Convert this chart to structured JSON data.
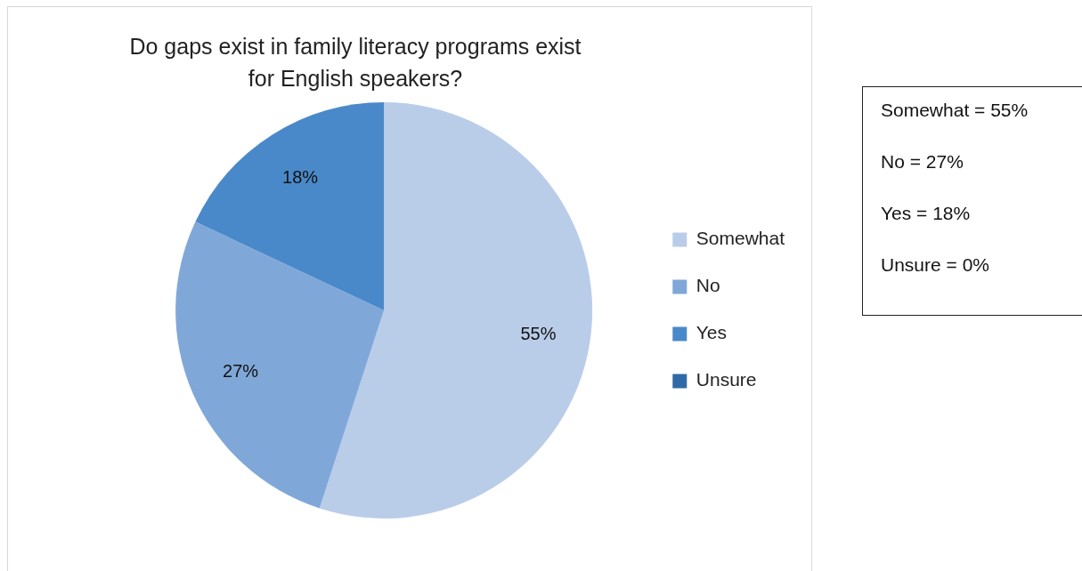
{
  "chart_data": {
    "type": "pie",
    "title": "Do gaps exist in family literacy programs exist for English speakers?",
    "categories": [
      "Somewhat",
      "No",
      "Yes",
      "Unsure"
    ],
    "values": [
      55,
      27,
      18,
      0
    ],
    "colors": [
      "#b9cde9",
      "#7fa8d9",
      "#4a89c9",
      "#2f6aa6"
    ],
    "value_labels": [
      "55%",
      "27%",
      "18%",
      null
    ],
    "legend": "right",
    "annotations": [
      "Somewhat = 55%",
      "No = 27%",
      "Yes = 18%",
      "Unsure = 0%"
    ]
  }
}
